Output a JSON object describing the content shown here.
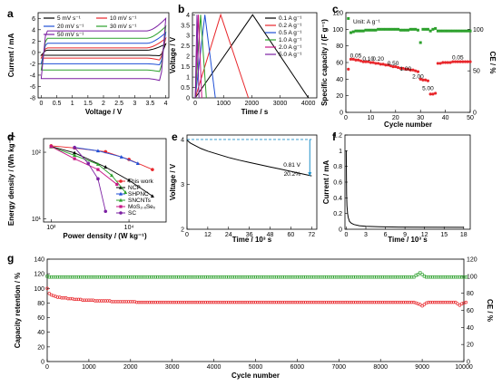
{
  "colors": {
    "black": "#000000",
    "red": "#e8262b",
    "blue": "#1f4fd6",
    "green": "#2ca02c",
    "magenta": "#c71585",
    "purple": "#7b1fa2",
    "cyan": "#1e90c8",
    "gray": "#555555"
  },
  "chart_data": [
    {
      "panel": "a",
      "type": "line",
      "xlabel": "Voltage / V",
      "ylabel": "Current / mA",
      "xlim": [
        -0.1,
        4.1
      ],
      "ylim": [
        -8,
        7
      ],
      "xticks": [
        0,
        0.5,
        1.0,
        1.5,
        2.0,
        2.5,
        3.0,
        3.5,
        4.0
      ],
      "yticks": [
        -8,
        -6,
        -4,
        -2,
        0,
        2,
        4,
        6
      ],
      "series": [
        {
          "name": "5 mV s⁻¹",
          "color": "#000000",
          "cathodic": -0.5,
          "anodic": 0.4,
          "end_top": 1.5,
          "end_bottom": -0.6
        },
        {
          "name": "10 mV s⁻¹",
          "color": "#e8262b",
          "cathodic": -1.0,
          "anodic": 0.8,
          "end_top": 2.5,
          "end_bottom": -1.4
        },
        {
          "name": "20 mV s⁻¹",
          "color": "#1f4fd6",
          "cathodic": -2.0,
          "anodic": 1.6,
          "end_top": 3.5,
          "end_bottom": -2.2
        },
        {
          "name": "30 mV s⁻¹",
          "color": "#2ca02c",
          "cathodic": -3.1,
          "anodic": 2.5,
          "end_top": 4.6,
          "end_bottom": -3.4
        },
        {
          "name": "50 mV s⁻¹",
          "color": "#7b1fa2",
          "cathodic": -4.6,
          "anodic": 3.8,
          "end_top": 6.0,
          "end_bottom": -5.0
        }
      ]
    },
    {
      "panel": "b",
      "type": "line",
      "xlabel": "Time / s",
      "ylabel": "Voltage / V",
      "xlim": [
        -100,
        4300
      ],
      "ylim": [
        0,
        4.1
      ],
      "xticks": [
        0,
        1000,
        2000,
        3000,
        4000
      ],
      "yticks": [
        0.0,
        0.5,
        1.0,
        1.5,
        2.0,
        2.5,
        3.0,
        3.5,
        4.0
      ],
      "series": [
        {
          "name": "0.1 A g⁻¹",
          "color": "#000000",
          "charge_end": 2030,
          "discharge_end": 4000
        },
        {
          "name": "0.2 A g⁻¹",
          "color": "#e8262b",
          "charge_end": 900,
          "discharge_end": 1880
        },
        {
          "name": "0.5 A g⁻¹",
          "color": "#1f4fd6",
          "charge_end": 340,
          "discharge_end": 710
        },
        {
          "name": "1.0 A g⁻¹",
          "color": "#2ca02c",
          "charge_end": 190,
          "discharge_end": 390
        },
        {
          "name": "2.0 A g⁻¹",
          "color": "#c71585",
          "charge_end": 110,
          "discharge_end": 230
        },
        {
          "name": "5.0 A g⁻¹",
          "color": "#7b1fa2",
          "charge_end": 60,
          "discharge_end": 130
        }
      ]
    },
    {
      "panel": "c",
      "type": "scatter",
      "xlabel": "Cycle number",
      "ylabel": "Specific capacity / (F g⁻¹)",
      "y2label": "CE / %",
      "unit_note": "Unit: A g⁻¹",
      "xlim": [
        0,
        50
      ],
      "ylim": [
        0,
        120
      ],
      "y2lim": [
        0,
        120
      ],
      "xticks": [
        0,
        10,
        20,
        30,
        40,
        50
      ],
      "yticks": [
        0,
        20,
        40,
        60,
        80,
        100,
        120
      ],
      "y2ticks": [
        0,
        50,
        100
      ],
      "capacity": [
        52,
        64,
        64,
        63,
        63,
        62,
        61,
        61,
        61,
        60,
        60,
        59,
        59,
        58,
        58,
        57,
        57,
        56,
        55,
        55,
        54,
        53,
        53,
        52,
        52,
        51,
        51,
        50,
        49,
        40,
        39,
        39,
        38,
        22,
        22,
        23,
        59,
        59,
        60,
        60,
        60,
        60,
        61,
        61,
        61,
        61,
        61,
        61,
        61,
        61
      ],
      "ce": [
        113,
        96,
        97,
        98,
        98,
        98,
        98,
        99,
        99,
        99,
        99,
        99,
        100,
        100,
        100,
        100,
        100,
        100,
        100,
        100,
        100,
        99,
        99,
        99,
        99,
        100,
        100,
        100,
        99,
        84,
        100,
        100,
        100,
        98,
        100,
        101,
        98,
        98,
        98,
        98,
        98,
        98,
        98,
        98,
        98,
        98,
        98,
        98,
        98,
        98
      ],
      "rate_labels": [
        {
          "text": "0.05",
          "x": 4,
          "y": 66
        },
        {
          "text": "0.10",
          "x": 9,
          "y": 62
        },
        {
          "text": "0.20",
          "x": 13,
          "y": 62
        },
        {
          "text": "0.50",
          "x": 19,
          "y": 57
        },
        {
          "text": "1.00",
          "x": 24,
          "y": 50
        },
        {
          "text": "2.00",
          "x": 29,
          "y": 41
        },
        {
          "text": "5.00",
          "x": 33,
          "y": 27
        },
        {
          "text": "0.05",
          "x": 45,
          "y": 64
        }
      ]
    },
    {
      "panel": "d",
      "type": "line",
      "xlabel": "Power density / (W kg⁻¹)",
      "ylabel": "Energy density / (Wh kg⁻¹)",
      "xscale": "log",
      "yscale": "log",
      "xlim": [
        800,
        30000
      ],
      "ylim": [
        9,
        160
      ],
      "xticks": [
        1000,
        10000
      ],
      "xticklabels": [
        "10²",
        "10⁴"
      ],
      "yticks": [
        10,
        100
      ],
      "yticklabels": [
        "10¹",
        "10²"
      ],
      "series": [
        {
          "name": "This work",
          "color": "#e8262b",
          "marker": "circle",
          "x": [
            1000,
            2000,
            5000,
            10000,
            20000
          ],
          "y": [
            125,
            116,
            102,
            78,
            55
          ]
        },
        {
          "name": "NCP",
          "color": "#000000",
          "marker": "triangle",
          "x": [
            1000,
            2000,
            5000,
            10000,
            20000
          ],
          "y": [
            122,
            98,
            60,
            38,
            22
          ]
        },
        {
          "name": "SHPNC",
          "color": "#1f4fd6",
          "marker": "triangle",
          "x": [
            2000,
            4000,
            8000,
            13000
          ],
          "y": [
            118,
            105,
            85,
            68
          ]
        },
        {
          "name": "SNCNTs",
          "color": "#2ca02c",
          "marker": "triangle",
          "x": [
            1000,
            2000,
            4000,
            6000,
            9000
          ],
          "y": [
            120,
            90,
            66,
            45,
            25
          ]
        },
        {
          "name": "MoS₂.ₓSeₓ",
          "color": "#c71585",
          "marker": "square",
          "x": [
            1000,
            2000,
            4000,
            7000
          ],
          "y": [
            122,
            80,
            55,
            33
          ]
        },
        {
          "name": "SC",
          "color": "#7b1fa2",
          "marker": "circle",
          "x": [
            2000,
            3000,
            4000,
            5000
          ],
          "y": [
            118,
            68,
            40,
            13
          ]
        }
      ]
    },
    {
      "panel": "e",
      "type": "line",
      "xlabel": "Time / 10³ s",
      "ylabel": "Voltage / V",
      "xlim": [
        0,
        75
      ],
      "ylim": [
        2,
        4.1
      ],
      "xticks": [
        0,
        12,
        24,
        36,
        48,
        60,
        72
      ],
      "yticks": [
        2,
        3,
        4
      ],
      "x": [
        0,
        0.5,
        1,
        2,
        4,
        8,
        12,
        18,
        24,
        30,
        36,
        42,
        48,
        54,
        60,
        66,
        72
      ],
      "y": [
        4.0,
        3.97,
        3.95,
        3.92,
        3.88,
        3.8,
        3.74,
        3.67,
        3.6,
        3.54,
        3.49,
        3.44,
        3.39,
        3.34,
        3.29,
        3.24,
        3.19
      ],
      "drop_label": "0.81 V",
      "retention_label": "20.2%"
    },
    {
      "panel": "f",
      "type": "line",
      "xlabel": "Time / 10³ s",
      "ylabel": "Current / mA",
      "xlim": [
        -0.2,
        19
      ],
      "ylim": [
        0,
        1.2
      ],
      "xticks": [
        0,
        3,
        6,
        9,
        12,
        15,
        18
      ],
      "yticks": [
        0.0,
        0.2,
        0.4,
        0.6,
        0.8,
        1.0,
        1.2
      ],
      "x": [
        0,
        0.05,
        0.1,
        0.2,
        0.3,
        0.5,
        0.8,
        1.2,
        2,
        3,
        5,
        8,
        12,
        18
      ],
      "y": [
        1.0,
        0.45,
        0.3,
        0.2,
        0.15,
        0.1,
        0.075,
        0.06,
        0.045,
        0.038,
        0.032,
        0.028,
        0.026,
        0.024
      ]
    },
    {
      "panel": "g",
      "type": "scatter",
      "xlabel": "Cycle number",
      "ylabel": "Capacity retention / %",
      "y2label": "CE / %",
      "xlim": [
        0,
        10000
      ],
      "ylim": [
        0,
        140
      ],
      "y2lim": [
        0,
        120
      ],
      "xticks": [
        0,
        1000,
        2000,
        3000,
        4000,
        5000,
        6000,
        7000,
        8000,
        9000,
        10000
      ],
      "yticks": [
        0,
        20,
        40,
        60,
        80,
        100,
        120,
        140
      ],
      "y2ticks": [
        0,
        20,
        40,
        60,
        80,
        100,
        120
      ],
      "cycles_start": 0,
      "cycles_step": 50,
      "retention": [
        100,
        93,
        91,
        90,
        89,
        88,
        88,
        87,
        87,
        87,
        86,
        86,
        86,
        85,
        85,
        85,
        85,
        84,
        84,
        84,
        84,
        84,
        84,
        83,
        83,
        83,
        83,
        83,
        83,
        83,
        83,
        82,
        82,
        82,
        82,
        82,
        82,
        82,
        82,
        82,
        82,
        82,
        82,
        81,
        81,
        81,
        81,
        81,
        81,
        81,
        81,
        81,
        81,
        81,
        81,
        81,
        81,
        81,
        81,
        81,
        81,
        81,
        81,
        81,
        81,
        81,
        81,
        81,
        81,
        81,
        81,
        81,
        81,
        81,
        81,
        81,
        81,
        81,
        81,
        81,
        81,
        81,
        81,
        81,
        81,
        81,
        81,
        81,
        81,
        81,
        81,
        81,
        81,
        81,
        81,
        81,
        81,
        81,
        81,
        81,
        81,
        81,
        81,
        81,
        81,
        81,
        81,
        81,
        81,
        81,
        81,
        81,
        81,
        81,
        81,
        81,
        81,
        81,
        81,
        81,
        81,
        81,
        81,
        81,
        81,
        81,
        81,
        81,
        81,
        81,
        81,
        81,
        81,
        81,
        81,
        81,
        81,
        81,
        81,
        81,
        81,
        81,
        81,
        81,
        81,
        81,
        81,
        81,
        81,
        81,
        81,
        81,
        81,
        81,
        81,
        81,
        81,
        81,
        81,
        81,
        81,
        81,
        81,
        81,
        81,
        81,
        81,
        81,
        81,
        81,
        81,
        81,
        81,
        81,
        81,
        81,
        81,
        80,
        79,
        78,
        76,
        78,
        80,
        81,
        81,
        81,
        81,
        81,
        81,
        81,
        81,
        81,
        81,
        81,
        81,
        81,
        81,
        79,
        77,
        79,
        80,
        81
      ],
      "ce": [
        100,
        99,
        99,
        99,
        99,
        99,
        99,
        99,
        99,
        99,
        99,
        99,
        99,
        99,
        99,
        99,
        99,
        99,
        99,
        99,
        99,
        99,
        99,
        99,
        99,
        99,
        99,
        99,
        99,
        99,
        99,
        99,
        99,
        99,
        99,
        99,
        99,
        99,
        99,
        99,
        99,
        99,
        99,
        99,
        99,
        99,
        99,
        99,
        99,
        99,
        99,
        99,
        99,
        99,
        99,
        99,
        99,
        99,
        99,
        99,
        99,
        99,
        99,
        99,
        99,
        99,
        99,
        99,
        99,
        99,
        99,
        99,
        99,
        99,
        99,
        99,
        99,
        99,
        99,
        99,
        99,
        99,
        99,
        99,
        99,
        99,
        99,
        99,
        99,
        99,
        99,
        99,
        99,
        99,
        99,
        99,
        99,
        99,
        99,
        99,
        99,
        99,
        99,
        99,
        99,
        99,
        99,
        99,
        99,
        99,
        99,
        99,
        99,
        99,
        99,
        99,
        99,
        99,
        99,
        99,
        99,
        99,
        99,
        99,
        99,
        99,
        99,
        99,
        99,
        99,
        99,
        99,
        99,
        99,
        99,
        99,
        99,
        99,
        99,
        99,
        99,
        99,
        99,
        99,
        99,
        99,
        99,
        99,
        99,
        99,
        99,
        99,
        99,
        99,
        99,
        99,
        99,
        99,
        99,
        99,
        99,
        99,
        99,
        99,
        99,
        99,
        99,
        99,
        99,
        99,
        99,
        99,
        99,
        99,
        99,
        99,
        99,
        101,
        102,
        104,
        102,
        100,
        99,
        99,
        99,
        99,
        99,
        99,
        99,
        99,
        99,
        99,
        99,
        99,
        99,
        99,
        99,
        99,
        99,
        99,
        99,
        99
      ]
    }
  ]
}
